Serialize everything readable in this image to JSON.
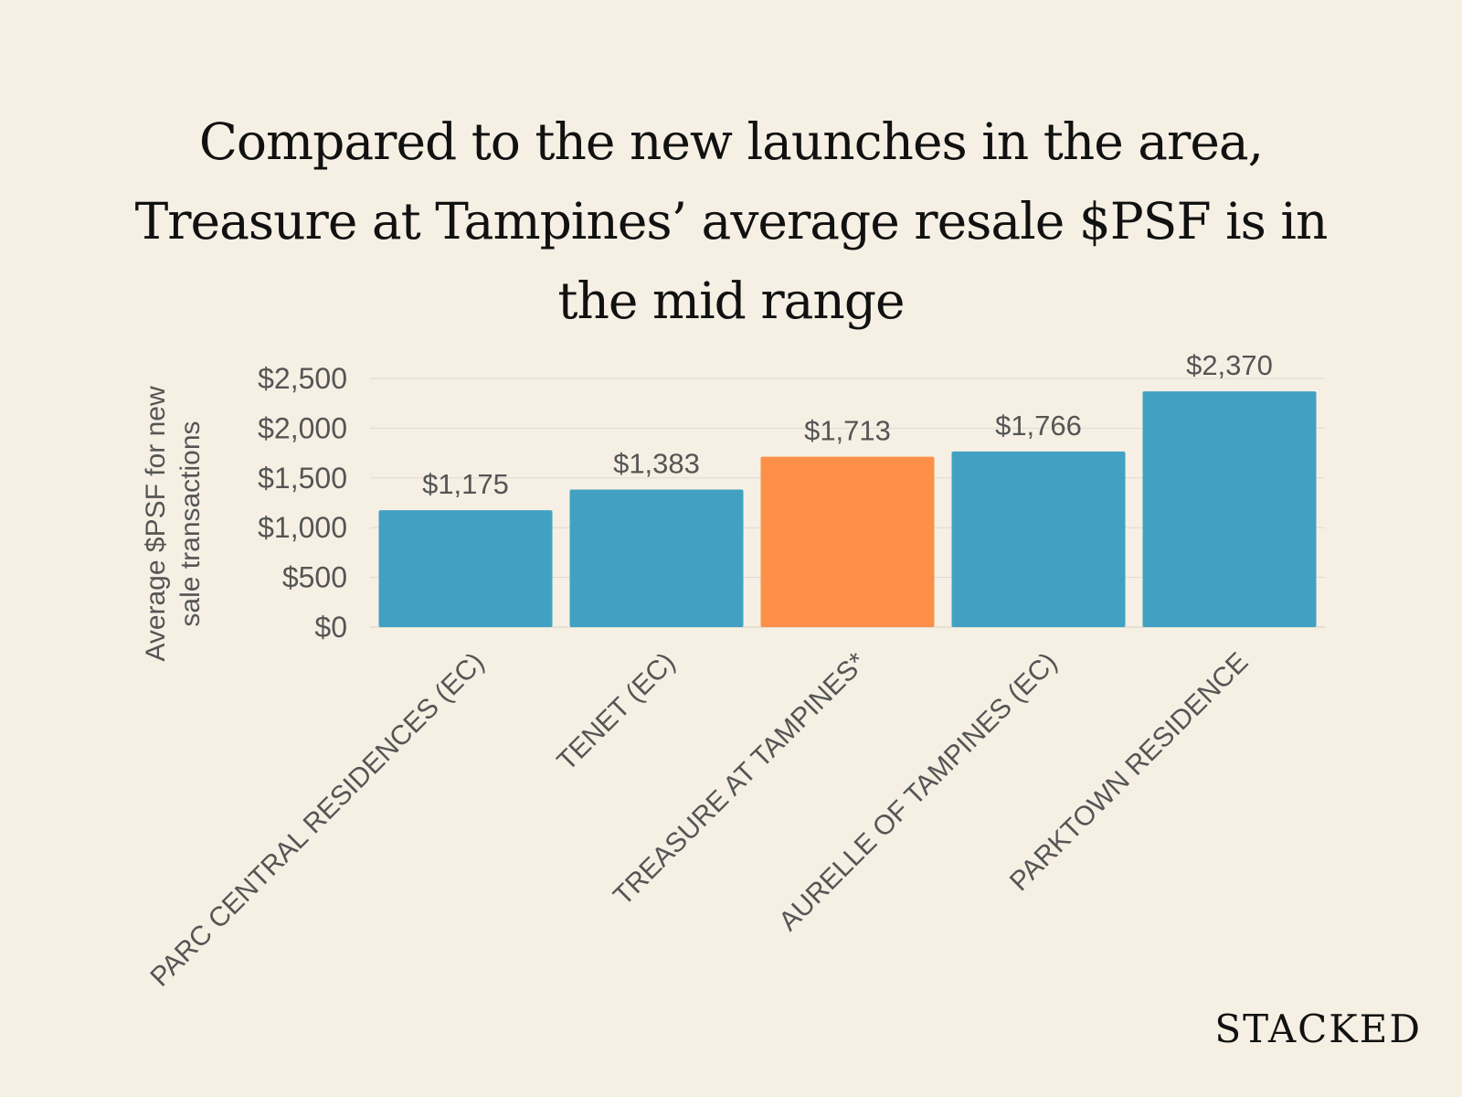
{
  "title_lines": [
    "Compared to the new launches in the area,",
    "Treasure at Tampines’ average resale $PSF is in",
    "the mid range"
  ],
  "brand": "STACKED",
  "colors": {
    "background": "#f6f0e4",
    "bar": "#42a1c2",
    "highlight": "#fd8f48",
    "text": "#555555",
    "grid": "#dedad0"
  },
  "chart_data": {
    "type": "bar",
    "title": "Compared to the new launches in the area, Treasure at Tampines’ average resale $PSF is in the mid range",
    "ylabel_lines": [
      "Average $PSF for new",
      "sale transactions"
    ],
    "xlabel": "",
    "categories": [
      "PARC CENTRAL RESIDENCES (EC)",
      "TENET (EC)",
      "TREASURE AT TAMPINES*",
      "AURELLE OF TAMPINES (EC)",
      "PARKTOWN RESIDENCE"
    ],
    "values": [
      1175,
      1383,
      1713,
      1766,
      2370
    ],
    "data_labels": [
      "$1,175",
      "$1,383",
      "$1,713",
      "$1,766",
      "$2,370"
    ],
    "highlight_category": "TREASURE AT TAMPINES*",
    "ylim": [
      0,
      2500
    ],
    "yticks": [
      0,
      500,
      1000,
      1500,
      2000,
      2500
    ],
    "ytick_labels": [
      "$0",
      "$500",
      "$1,000",
      "$1,500",
      "$2,000",
      "$2,500"
    ],
    "grid": true,
    "legend": "none"
  }
}
